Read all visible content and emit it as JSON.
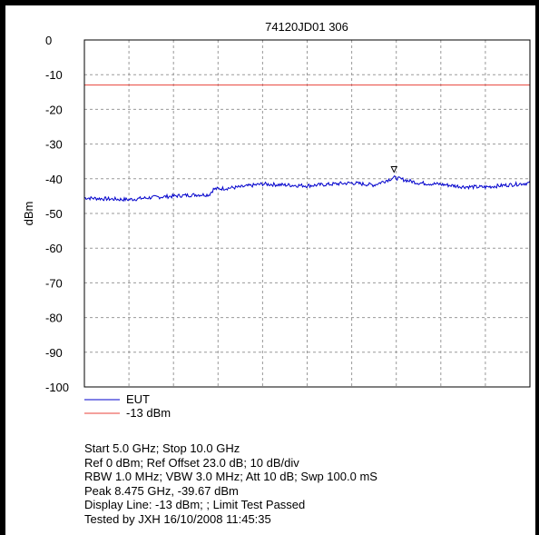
{
  "colors": {
    "trace": "#0000cc",
    "display_line": "#e8423a",
    "grid": "#9a9a9a",
    "axis": "#000000"
  },
  "chart_data": {
    "type": "line",
    "title": "74120JD01 306",
    "ylabel": "dBm",
    "xlabel": "",
    "xlim": [
      5.0,
      10.0
    ],
    "ylim": [
      -100,
      0
    ],
    "x_unit": "GHz",
    "grid": true,
    "yticks": [
      0,
      -10,
      -20,
      -30,
      -40,
      -50,
      -60,
      -70,
      -80,
      -90,
      -100
    ],
    "legend_position": "bottom-left",
    "series": [
      {
        "name": "EUT",
        "color": "#0000cc",
        "x": [
          5.0,
          5.25,
          5.5,
          5.75,
          6.0,
          6.25,
          6.4,
          6.45,
          6.75,
          7.0,
          7.25,
          7.5,
          7.75,
          8.0,
          8.25,
          8.475,
          8.75,
          9.0,
          9.25,
          9.5,
          9.75,
          10.0
        ],
        "y": [
          -45.5,
          -45.8,
          -46.0,
          -45.4,
          -45.0,
          -44.6,
          -44.6,
          -43.0,
          -42.4,
          -41.5,
          -41.8,
          -42.0,
          -41.6,
          -41.2,
          -41.8,
          -39.67,
          -41.2,
          -41.6,
          -42.3,
          -42.4,
          -41.8,
          -41.2
        ]
      },
      {
        "name": "-13 dBm",
        "color": "#e8423a",
        "x": [
          5.0,
          10.0
        ],
        "y": [
          -13,
          -13
        ]
      }
    ],
    "marker": {
      "x": 8.475,
      "y": -39.67
    },
    "annotations": [
      "Start 5.0 GHz; Stop 10.0 GHz",
      "Ref 0 dBm; Ref Offset 23.0 dB; 10 dB/div",
      "RBW 1.0 MHz; VBW 3.0 MHz; Att 10 dB; Swp 100.0 mS",
      "Peak 8.475 GHz, -39.67  dBm",
      "Display Line: -13 dBm; ; Limit Test Passed",
      "Tested by JXH 16/10/2008 11:45:35"
    ]
  }
}
